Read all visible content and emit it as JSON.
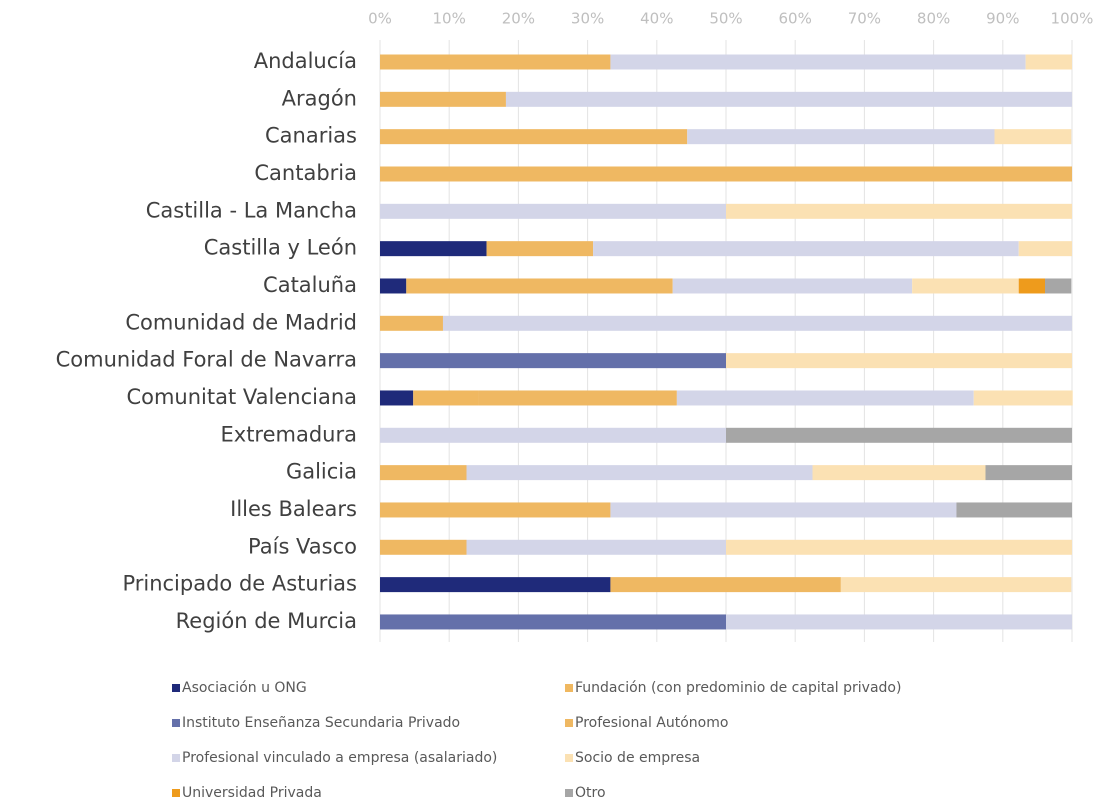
{
  "chart_data": {
    "type": "bar",
    "orientation": "horizontal",
    "stacked": true,
    "categories": [
      "Andalucía",
      "Aragón",
      "Canarias",
      "Cantabria",
      "Castilla - La Mancha",
      "Castilla y León",
      "Cataluña",
      "Comunidad de Madrid",
      "Comunidad Foral de Navarra",
      "Comunitat Valenciana",
      "Extremadura",
      "Galicia",
      "Illes Balears",
      "País Vasco",
      "Principado de Asturias",
      "Región de Murcia"
    ],
    "series": [
      {
        "name": "Asociación u ONG",
        "color": "#1f2a7a",
        "values": [
          0,
          0,
          0,
          0,
          0,
          15.4,
          3.8,
          0,
          0,
          4.8,
          0,
          0,
          0,
          0,
          33.3,
          0
        ]
      },
      {
        "name": "Fundación (con predominio de capital privado)",
        "color": "#f0b860",
        "values": [
          0,
          0,
          0,
          0,
          0,
          0,
          0,
          0,
          0,
          9.5,
          0,
          0,
          0,
          0,
          0,
          0
        ]
      },
      {
        "name": "Instituto Enseñanza Secundaria Privado",
        "color": "#6470aa",
        "values": [
          0,
          0,
          0,
          0,
          0,
          0,
          0,
          0,
          50,
          0,
          0,
          0,
          0,
          0,
          0,
          50
        ]
      },
      {
        "name": "Profesional Autónomo",
        "color": "#efb862",
        "values": [
          33.3,
          18.2,
          44.4,
          100,
          0,
          15.4,
          38.5,
          9.1,
          0,
          28.6,
          0,
          12.5,
          33.3,
          12.5,
          33.3,
          0
        ]
      },
      {
        "name": "Profesional vinculado a empresa (asalariado)",
        "color": "#d3d5e8",
        "values": [
          60,
          81.8,
          44.4,
          0,
          50,
          61.5,
          34.6,
          90.9,
          0,
          42.9,
          50,
          50,
          50,
          37.5,
          0,
          50
        ]
      },
      {
        "name": "Socio de empresa",
        "color": "#fbe1b3",
        "values": [
          6.7,
          0,
          11.1,
          0,
          50,
          7.7,
          15.4,
          0,
          50,
          14.3,
          0,
          25,
          0,
          50,
          33.3,
          0
        ]
      },
      {
        "name": "Universidad Privada",
        "color": "#ee9b1c",
        "values": [
          0,
          0,
          0,
          0,
          0,
          0,
          3.8,
          0,
          0,
          0,
          0,
          0,
          0,
          0,
          0,
          0
        ]
      },
      {
        "name": "Otro",
        "color": "#a6a6a6",
        "values": [
          0,
          0,
          0,
          0,
          0,
          0,
          3.8,
          0,
          0,
          0,
          50,
          12.5,
          16.7,
          0,
          0,
          0
        ]
      }
    ],
    "xlim": [
      0,
      100
    ],
    "xticks": [
      {
        "value": 0,
        "label": "0%"
      },
      {
        "value": 10,
        "label": "10%"
      },
      {
        "value": 20,
        "label": "20%"
      },
      {
        "value": 30,
        "label": "30%"
      },
      {
        "value": 40,
        "label": "40%"
      },
      {
        "value": 50,
        "label": "50%"
      },
      {
        "value": 60,
        "label": "60%"
      },
      {
        "value": 70,
        "label": "70%"
      },
      {
        "value": 80,
        "label": "80%"
      },
      {
        "value": 90,
        "label": "90%"
      },
      {
        "value": 100,
        "label": "100%"
      }
    ],
    "grid": true,
    "legend": "bottom"
  }
}
